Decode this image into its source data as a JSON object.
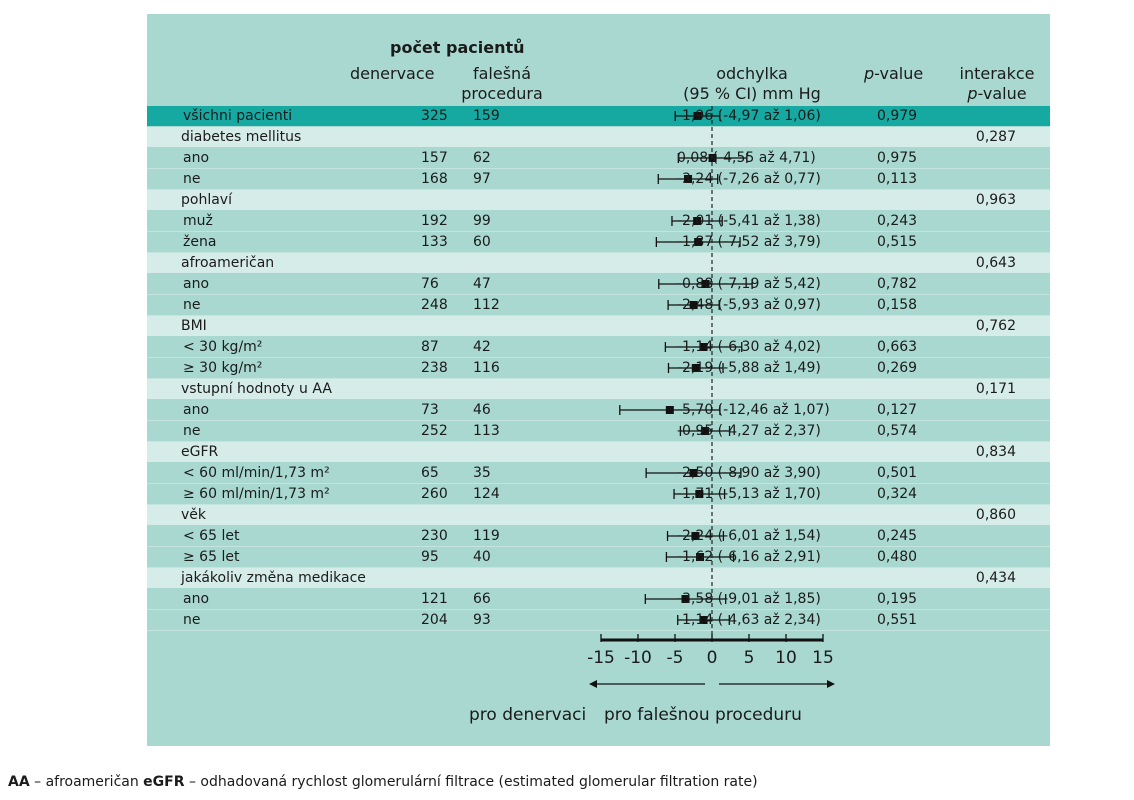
{
  "header": {
    "patients_title": "počet pacientů",
    "col_denervation": "denervace",
    "col_sham_line1": "falešná",
    "col_sham_line2": "procedura",
    "col_diff_line1": "odchylka",
    "col_diff_line2": "(95 % CI) mm Hg",
    "col_pvalue_italic": "p",
    "col_pvalue_rest": "-value",
    "col_interaction_line1": "interakce",
    "col_interaction_italic": "p",
    "col_interaction_rest": "-value"
  },
  "colors": {
    "panel_bg": "#a8d8d0",
    "row_band": "#d6ece8",
    "highlight_row": "#16a9a2",
    "marker": "#111111"
  },
  "chart_data": {
    "type": "forest",
    "xlim": [
      -15,
      15
    ],
    "xticks": [
      -15,
      -10,
      -5,
      0,
      5,
      10,
      15
    ],
    "xtick_labels": [
      "-15",
      "-10",
      "-5",
      "0",
      "5",
      "10",
      "15"
    ],
    "reference_line": 0,
    "direction_left": "pro denervaci",
    "direction_right": "pro falešnou proceduru",
    "rows": [
      {
        "label": "všichni pacienti",
        "kind": "highlight",
        "n_den": "325",
        "n_sham": "159",
        "est": -1.96,
        "lo": -4.97,
        "hi": 1.06,
        "ci_text": "-1,96 (-4,97 až 1,06)",
        "p": "0,979",
        "p_int": ""
      },
      {
        "label": "diabetes mellitus",
        "kind": "group",
        "n_den": "",
        "n_sham": "",
        "ci_text": "",
        "p": "",
        "p_int": "0,287"
      },
      {
        "label": "ano",
        "kind": "sub",
        "n_den": "157",
        "n_sham": "62",
        "est": 0.08,
        "lo": -4.55,
        "hi": 4.71,
        "ci_text": "0,08 (-4,55 až 4,71)",
        "p": "0,975",
        "p_int": ""
      },
      {
        "label": "ne",
        "kind": "sub",
        "n_den": "168",
        "n_sham": "97",
        "est": -3.24,
        "lo": -7.26,
        "hi": 0.77,
        "ci_text": "-3,24 (-7,26 až 0,77)",
        "p": "0,113",
        "p_int": ""
      },
      {
        "label": "pohlaví",
        "kind": "group",
        "n_den": "",
        "n_sham": "",
        "ci_text": "",
        "p": "",
        "p_int": "0,963"
      },
      {
        "label": "muž",
        "kind": "sub",
        "n_den": "192",
        "n_sham": "99",
        "est": -2.01,
        "lo": -5.41,
        "hi": 1.38,
        "ci_text": "-2,01 (-5,41 až 1,38)",
        "p": "0,243",
        "p_int": ""
      },
      {
        "label": "žena",
        "kind": "sub",
        "n_den": "133",
        "n_sham": "60",
        "est": -1.87,
        "lo": -7.52,
        "hi": 3.79,
        "ci_text": "-1,87 (-7,52 až 3,79)",
        "p": "0,515",
        "p_int": ""
      },
      {
        "label": "afroameričan",
        "kind": "group",
        "n_den": "",
        "n_sham": "",
        "ci_text": "",
        "p": "",
        "p_int": "0,643"
      },
      {
        "label": "ano",
        "kind": "sub",
        "n_den": "76",
        "n_sham": "47",
        "est": -0.88,
        "lo": -7.19,
        "hi": 5.42,
        "ci_text": "-0,88 (-7,19 až 5,42)",
        "p": "0,782",
        "p_int": ""
      },
      {
        "label": "ne",
        "kind": "sub",
        "n_den": "248",
        "n_sham": "112",
        "est": -2.48,
        "lo": -5.93,
        "hi": 0.97,
        "ci_text": "-2,48 (-5,93 až 0,97)",
        "p": "0,158",
        "p_int": ""
      },
      {
        "label": "BMI",
        "kind": "group",
        "n_den": "",
        "n_sham": "",
        "ci_text": "",
        "p": "",
        "p_int": "0,762"
      },
      {
        "label": "< 30 kg/m²",
        "kind": "sub",
        "n_den": "87",
        "n_sham": "42",
        "est": -1.14,
        "lo": -6.3,
        "hi": 4.02,
        "ci_text": "-1,14 (-6,30 až 4,02)",
        "p": "0,663",
        "p_int": ""
      },
      {
        "label": "≥ 30 kg/m²",
        "kind": "sub",
        "n_den": "238",
        "n_sham": "116",
        "est": -2.19,
        "lo": -5.88,
        "hi": 1.49,
        "ci_text": "-2,19 (-5,88 až 1,49)",
        "p": "0,269",
        "p_int": ""
      },
      {
        "label": "vstupní hodnoty u AA",
        "kind": "group",
        "n_den": "",
        "n_sham": "",
        "ci_text": "",
        "p": "",
        "p_int": "0,171"
      },
      {
        "label": "ano",
        "kind": "sub",
        "n_den": "73",
        "n_sham": "46",
        "est": -5.7,
        "lo": -12.46,
        "hi": 1.07,
        "ci_text": "-5,70 (-12,46 až 1,07)",
        "p": "0,127",
        "p_int": ""
      },
      {
        "label": "ne",
        "kind": "sub",
        "n_den": "252",
        "n_sham": "113",
        "est": -0.95,
        "lo": -4.27,
        "hi": 2.37,
        "ci_text": "-0,95 (-4,27 až 2,37)",
        "p": "0,574",
        "p_int": ""
      },
      {
        "label": "eGFR",
        "kind": "group",
        "n_den": "",
        "n_sham": "",
        "ci_text": "",
        "p": "",
        "p_int": "0,834"
      },
      {
        "label": "< 60 ml/min/1,73 m²",
        "kind": "sub",
        "n_den": "65",
        "n_sham": "35",
        "est": -2.5,
        "lo": -8.9,
        "hi": 3.9,
        "ci_text": "-2,50 (-8,90 až 3,90)",
        "p": "0,501",
        "p_int": ""
      },
      {
        "label": "≥ 60 ml/min/1,73 m²",
        "kind": "sub",
        "n_den": "260",
        "n_sham": "124",
        "est": -1.71,
        "lo": -5.13,
        "hi": 1.7,
        "ci_text": "-1,71 (-5,13 až 1,70)",
        "p": "0,324",
        "p_int": ""
      },
      {
        "label": "věk",
        "kind": "group",
        "n_den": "",
        "n_sham": "",
        "ci_text": "",
        "p": "",
        "p_int": "0,860"
      },
      {
        "label": "< 65 let",
        "kind": "sub",
        "n_den": "230",
        "n_sham": "119",
        "est": -2.24,
        "lo": -6.01,
        "hi": 1.54,
        "ci_text": "-2,24 (-6,01 až 1,54)",
        "p": "0,245",
        "p_int": ""
      },
      {
        "label": "≥ 65 let",
        "kind": "sub",
        "n_den": "95",
        "n_sham": "40",
        "est": -1.62,
        "lo": -6.16,
        "hi": 2.91,
        "ci_text": "-1,62 (-6,16 až 2,91)",
        "p": "0,480",
        "p_int": ""
      },
      {
        "label": "jakákoliv změna medikace",
        "kind": "group",
        "n_den": "",
        "n_sham": "",
        "ci_text": "",
        "p": "",
        "p_int": "0,434"
      },
      {
        "label": "ano",
        "kind": "sub",
        "n_den": "121",
        "n_sham": "66",
        "est": -3.58,
        "lo": -9.01,
        "hi": 1.85,
        "ci_text": "-3,58 (-9,01 až 1,85)",
        "p": "0,195",
        "p_int": ""
      },
      {
        "label": "ne",
        "kind": "sub",
        "n_den": "204",
        "n_sham": "93",
        "est": -1.14,
        "lo": -4.63,
        "hi": 2.34,
        "ci_text": "-1,14 (-4,63 až 2,34)",
        "p": "0,551",
        "p_int": ""
      }
    ]
  },
  "footnote": {
    "abbr1": "AA",
    "def1": " – afroameričan ",
    "abbr2": "eGFR",
    "def2": " – odhadovaná rychlost glomerulární filtrace (estimated glomerular filtration rate)"
  }
}
